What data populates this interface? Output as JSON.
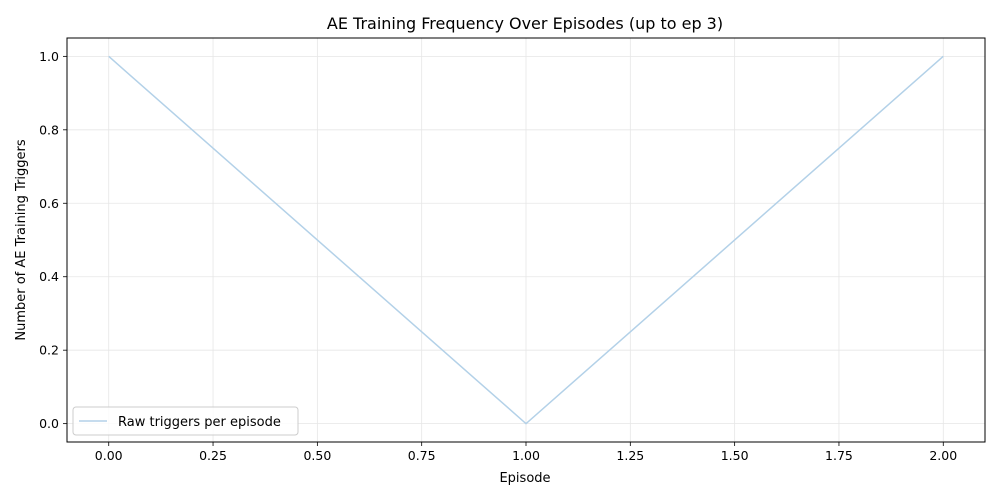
{
  "chart_data": {
    "type": "line",
    "title": "AE Training Frequency Over Episodes (up to ep 3)",
    "xlabel": "Episode",
    "ylabel": "Number of AE Training Triggers",
    "xlim": [
      -0.1,
      2.1
    ],
    "ylim": [
      -0.05,
      1.05
    ],
    "xticks": [
      0.0,
      0.25,
      0.5,
      0.75,
      1.0,
      1.25,
      1.5,
      1.75,
      2.0
    ],
    "xtick_labels": [
      "0.00",
      "0.25",
      "0.50",
      "0.75",
      "1.00",
      "1.25",
      "1.50",
      "1.75",
      "2.00"
    ],
    "yticks": [
      0.0,
      0.2,
      0.4,
      0.6,
      0.8,
      1.0
    ],
    "ytick_labels": [
      "0.0",
      "0.2",
      "0.4",
      "0.6",
      "0.8",
      "1.0"
    ],
    "grid": true,
    "legend_position": "lower-left",
    "series": [
      {
        "name": "Raw triggers per episode",
        "color": "#b3d1e8",
        "x": [
          0,
          1,
          2
        ],
        "y": [
          1,
          0,
          1
        ]
      }
    ]
  }
}
